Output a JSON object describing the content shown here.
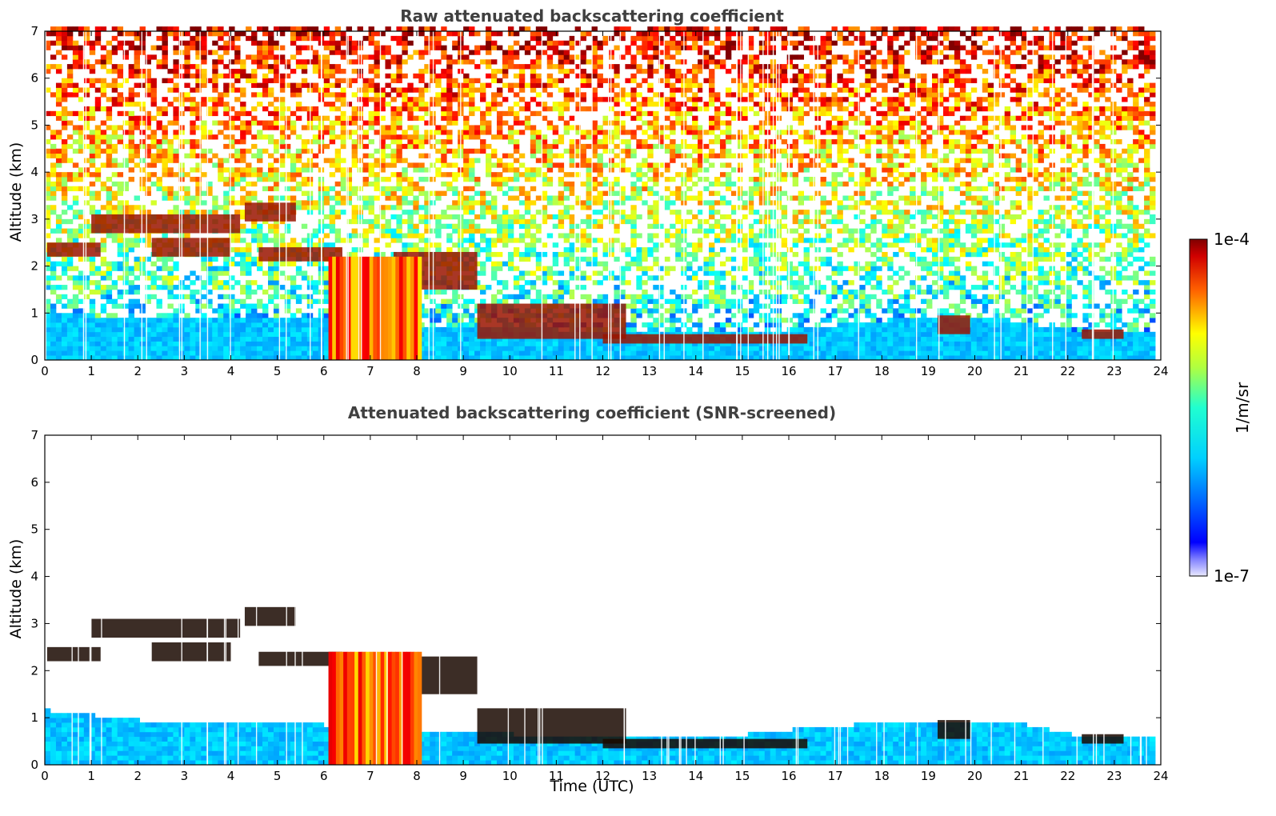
{
  "chart_data": [
    {
      "type": "heatmap",
      "title": "Raw attenuated backscattering coefficient",
      "xlabel": "",
      "ylabel": "Altitude (km)",
      "xlim": [
        0,
        24
      ],
      "ylim": [
        0,
        7
      ],
      "x_ticks": [
        "0",
        "1",
        "2",
        "3",
        "4",
        "5",
        "6",
        "7",
        "8",
        "9",
        "10",
        "11",
        "12",
        "13",
        "14",
        "15",
        "16",
        "17",
        "18",
        "19",
        "20",
        "21",
        "22",
        "23",
        "24"
      ],
      "y_ticks": [
        "0",
        "1",
        "2",
        "3",
        "4",
        "5",
        "6",
        "7"
      ],
      "screened": false,
      "colormap": "jet",
      "clouds": [
        {
          "kind": "cloud",
          "x": [
            0.05,
            1.2
          ],
          "base_km": 2.2,
          "top_km": 2.5
        },
        {
          "kind": "cloud",
          "x": [
            1.0,
            4.2
          ],
          "base_km": 2.7,
          "top_km": 3.1
        },
        {
          "kind": "cloud",
          "x": [
            2.3,
            4.0
          ],
          "base_km": 2.2,
          "top_km": 2.6
        },
        {
          "kind": "cloud",
          "x": [
            4.3,
            5.4
          ],
          "base_km": 2.95,
          "top_km": 3.35
        },
        {
          "kind": "cloud",
          "x": [
            4.6,
            6.4
          ],
          "base_km": 2.1,
          "top_km": 2.4
        },
        {
          "kind": "cloud",
          "x": [
            7.5,
            9.3
          ],
          "base_km": 1.5,
          "top_km": 2.3
        },
        {
          "kind": "cloud",
          "x": [
            9.3,
            12.5
          ],
          "base_km": 0.45,
          "top_km": 1.2
        },
        {
          "kind": "cloud",
          "x": [
            12.0,
            16.4
          ],
          "base_km": 0.35,
          "top_km": 0.55
        },
        {
          "kind": "cloud",
          "x": [
            19.2,
            19.9
          ],
          "base_km": 0.55,
          "top_km": 0.95
        },
        {
          "kind": "cloud",
          "x": [
            22.3,
            23.2
          ],
          "base_km": 0.45,
          "top_km": 0.65
        },
        {
          "kind": "precipitation",
          "x": [
            6.1,
            8.1
          ],
          "base_km": 0.0,
          "top_km": 2.2,
          "intensity": 0.8
        }
      ],
      "boundary_layer_top_km": [
        [
          0,
          0.95
        ],
        [
          2,
          0.85
        ],
        [
          4,
          0.85
        ],
        [
          6,
          0.85
        ],
        [
          8,
          0.7
        ],
        [
          10,
          0.65
        ],
        [
          12,
          0.55
        ],
        [
          14,
          0.55
        ],
        [
          16,
          0.6
        ],
        [
          18,
          0.8
        ],
        [
          20,
          0.9
        ],
        [
          21,
          0.75
        ],
        [
          22,
          0.6
        ],
        [
          23.8,
          0.6
        ]
      ]
    },
    {
      "type": "heatmap",
      "title": "Attenuated backscattering coefficient (SNR-screened)",
      "xlabel": "Time (UTC)",
      "ylabel": "Altitude (km)",
      "xlim": [
        0,
        24
      ],
      "ylim": [
        0,
        7
      ],
      "x_ticks": [
        "0",
        "1",
        "2",
        "3",
        "4",
        "5",
        "6",
        "7",
        "8",
        "9",
        "10",
        "11",
        "12",
        "13",
        "14",
        "15",
        "16",
        "17",
        "18",
        "19",
        "20",
        "21",
        "22",
        "23",
        "24"
      ],
      "y_ticks": [
        "0",
        "1",
        "2",
        "3",
        "4",
        "5",
        "6",
        "7"
      ],
      "screened": true,
      "colormap": "jet",
      "clouds": [
        {
          "kind": "cloud",
          "x": [
            0.05,
            1.2
          ],
          "base_km": 2.2,
          "top_km": 2.5
        },
        {
          "kind": "cloud",
          "x": [
            1.0,
            4.2
          ],
          "base_km": 2.7,
          "top_km": 3.1
        },
        {
          "kind": "cloud",
          "x": [
            2.3,
            4.0
          ],
          "base_km": 2.2,
          "top_km": 2.6
        },
        {
          "kind": "cloud",
          "x": [
            4.3,
            5.4
          ],
          "base_km": 2.95,
          "top_km": 3.35
        },
        {
          "kind": "cloud",
          "x": [
            4.6,
            6.4
          ],
          "base_km": 2.1,
          "top_km": 2.4
        },
        {
          "kind": "cloud",
          "x": [
            7.5,
            9.3
          ],
          "base_km": 1.5,
          "top_km": 2.3
        },
        {
          "kind": "cloud",
          "x": [
            9.3,
            12.5
          ],
          "base_km": 0.45,
          "top_km": 1.2
        },
        {
          "kind": "cloud",
          "x": [
            12.0,
            16.4
          ],
          "base_km": 0.35,
          "top_km": 0.55
        },
        {
          "kind": "cloud",
          "x": [
            19.2,
            19.9
          ],
          "base_km": 0.55,
          "top_km": 0.95
        },
        {
          "kind": "cloud",
          "x": [
            22.3,
            23.2
          ],
          "base_km": 0.45,
          "top_km": 0.65
        },
        {
          "kind": "precipitation",
          "x": [
            6.1,
            8.1
          ],
          "base_km": 0.0,
          "top_km": 2.4,
          "intensity": 0.8
        }
      ],
      "boundary_layer_top_km": [
        [
          0,
          1.1
        ],
        [
          2,
          0.9
        ],
        [
          4,
          0.85
        ],
        [
          6,
          0.8
        ],
        [
          8,
          0.65
        ],
        [
          10,
          0.6
        ],
        [
          12,
          0.55
        ],
        [
          14,
          0.5
        ],
        [
          16,
          0.7
        ],
        [
          18,
          0.85
        ],
        [
          20,
          0.9
        ],
        [
          21,
          0.8
        ],
        [
          22,
          0.6
        ],
        [
          23.8,
          0.6
        ]
      ]
    }
  ],
  "colorbar": {
    "max_label": "1e-4",
    "min_label": "1e-7",
    "unit_label": "1/m/sr",
    "scale": "log"
  }
}
